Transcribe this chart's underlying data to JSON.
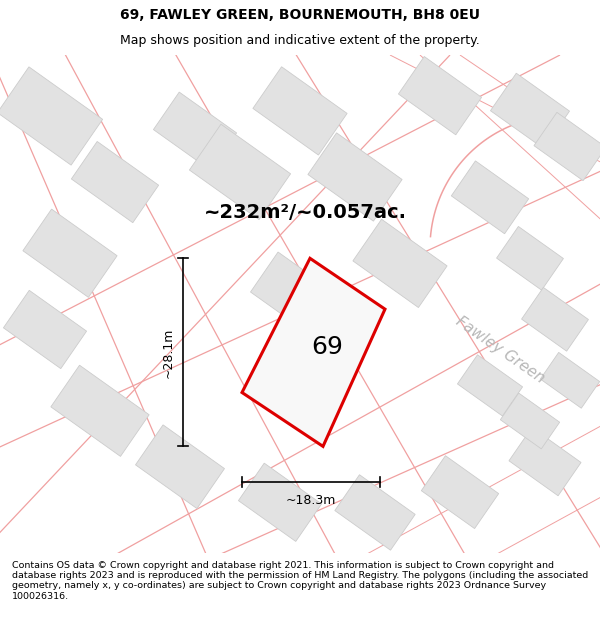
{
  "title_line1": "69, FAWLEY GREEN, BOURNEMOUTH, BH8 0EU",
  "title_line2": "Map shows position and indicative extent of the property.",
  "footer_text": "Contains OS data © Crown copyright and database right 2021. This information is subject to Crown copyright and database rights 2023 and is reproduced with the permission of HM Land Registry. The polygons (including the associated geometry, namely x, y co-ordinates) are subject to Crown copyright and database rights 2023 Ordnance Survey 100026316.",
  "area_text": "~232m²/~0.057ac.",
  "dim_vertical": "~28.1m",
  "dim_horizontal": "~18.3m",
  "street_label": "Fawley Green",
  "plot_number": "69",
  "background_color": "#ffffff",
  "map_bg_color": "#f7f7f7",
  "building_color": "#e2e2e2",
  "building_edge_color": "#cccccc",
  "road_color": "#f0a0a0",
  "plot_color": "#dd0000",
  "title_fontsize": 10,
  "subtitle_fontsize": 9,
  "footer_fontsize": 6.8,
  "area_fontsize": 14,
  "plot_number_fontsize": 18,
  "dim_fontsize": 9,
  "street_fontsize": 11
}
